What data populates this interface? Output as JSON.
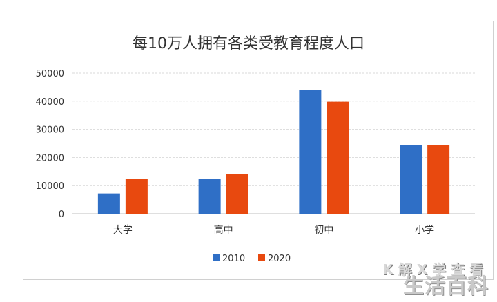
{
  "chart_data": {
    "type": "bar",
    "title": "每10万人拥有各类受教育程度人口",
    "categories": [
      "大学",
      "高中",
      "初中",
      "小学"
    ],
    "series": [
      {
        "name": "2010",
        "values": [
          7200,
          12500,
          44000,
          24500
        ],
        "color": "#2f6fc6"
      },
      {
        "name": "2020",
        "values": [
          12500,
          14000,
          39800,
          24500
        ],
        "color": "#e8490f"
      }
    ],
    "yticks": [
      0,
      10000,
      20000,
      30000,
      40000,
      50000
    ],
    "ylim": [
      0,
      50000
    ],
    "grid": true,
    "legend_position": "bottom",
    "xlabel": "",
    "ylabel": ""
  },
  "watermark": {
    "top": "K 解 X 学 查 看",
    "bottom": "生活百科"
  }
}
